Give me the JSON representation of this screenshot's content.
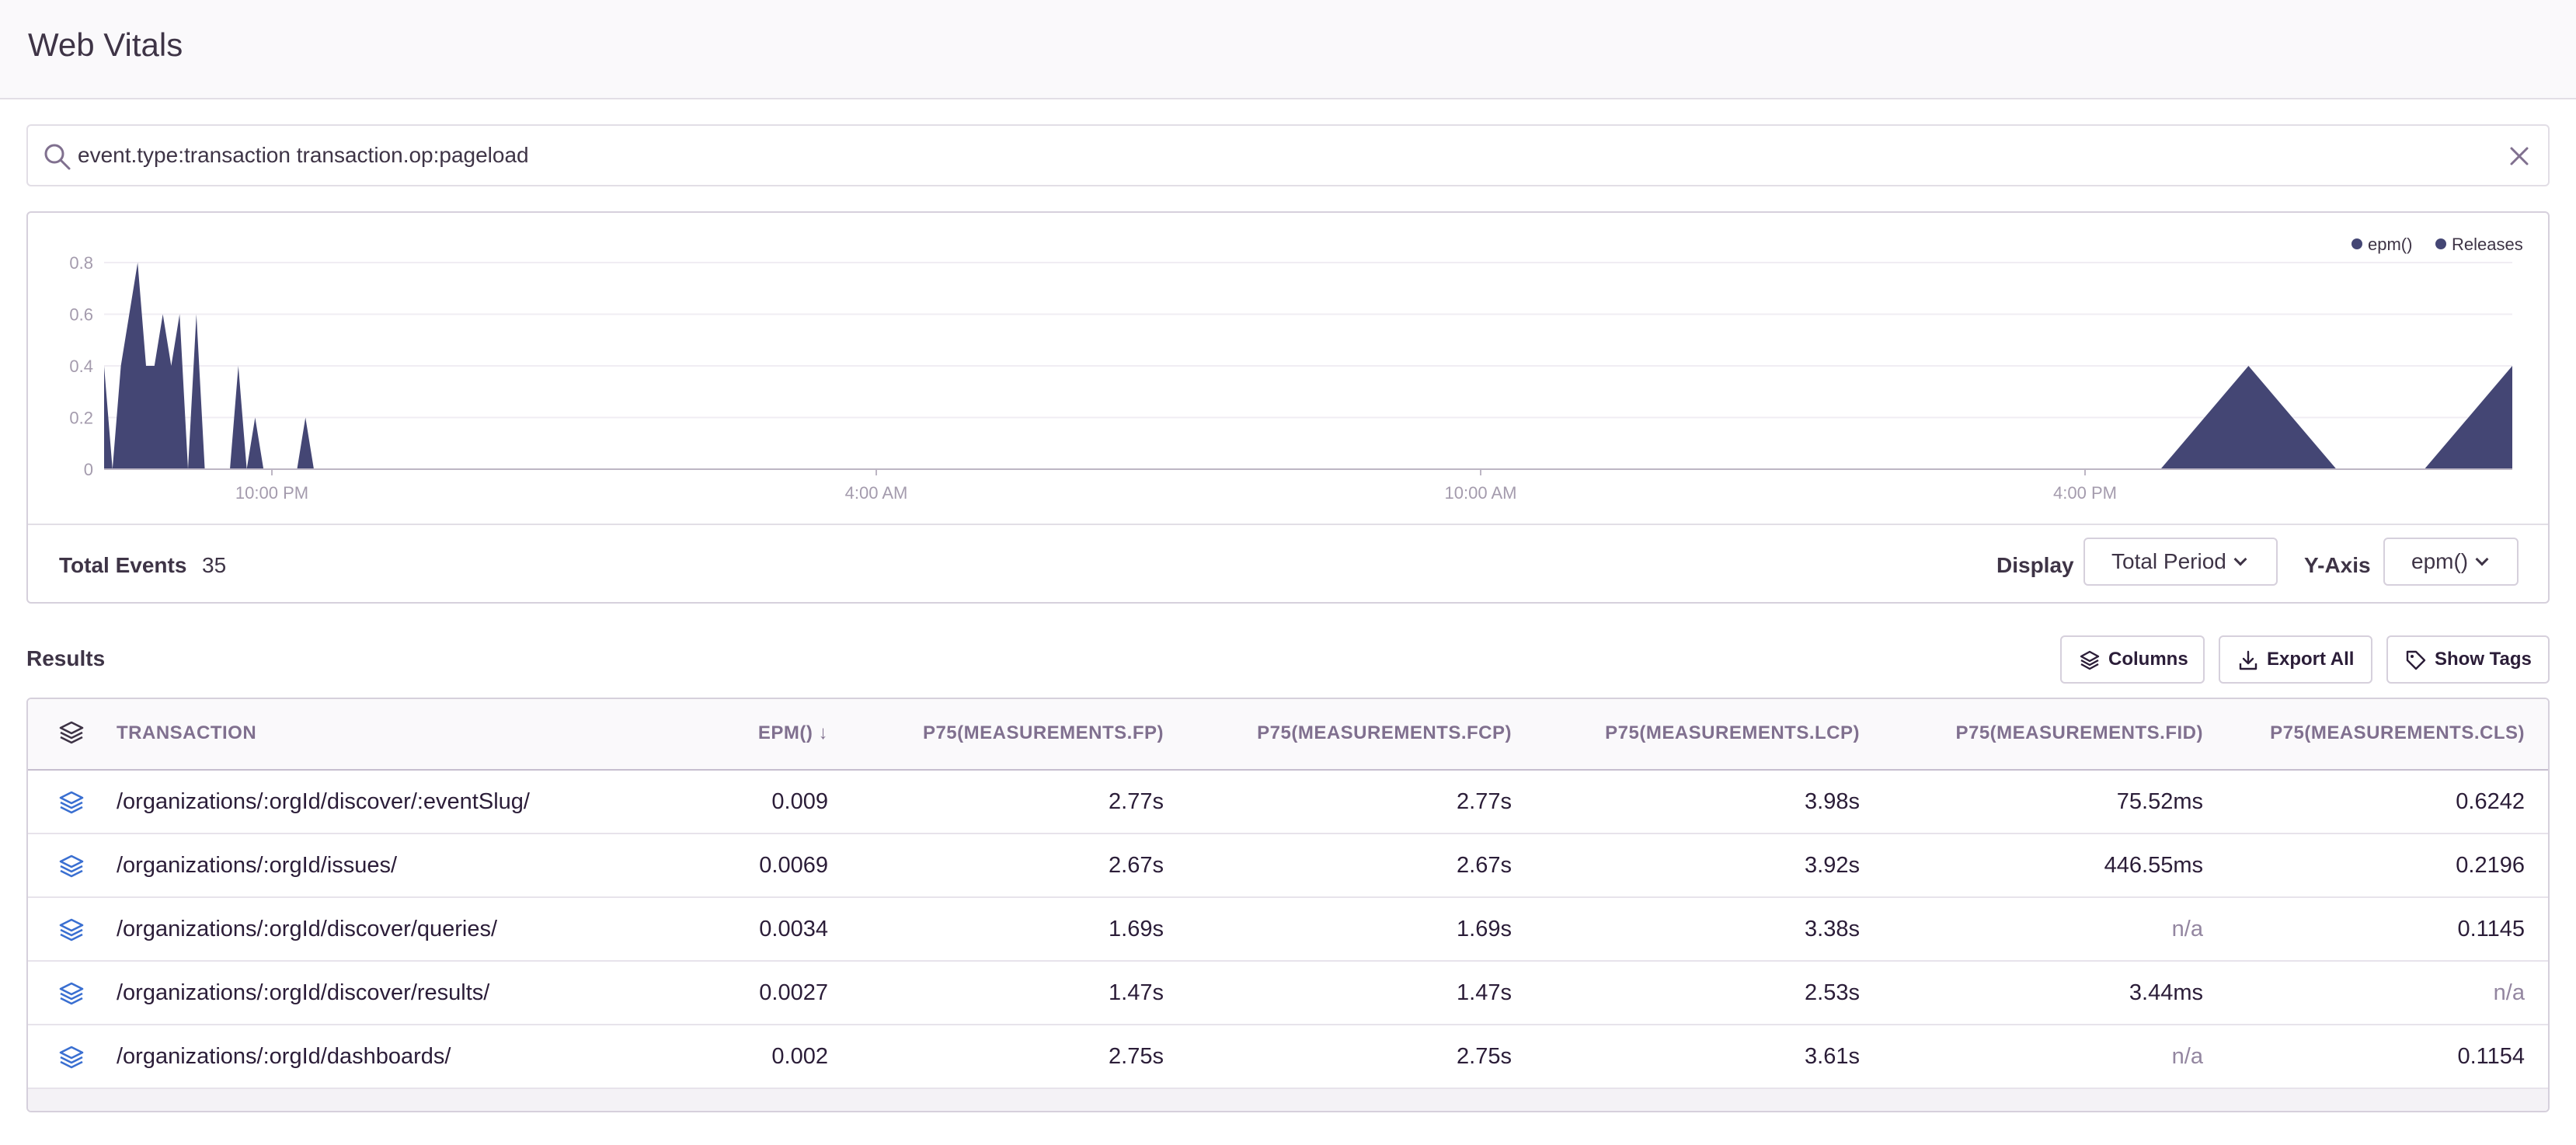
{
  "header": {
    "title": "Web Vitals"
  },
  "search": {
    "query": "event.type:transaction transaction.op:pageload"
  },
  "chart": {
    "legend": [
      "epm()",
      "Releases"
    ],
    "accent_color": "#444674",
    "y_ticks": [
      "0.8",
      "0.6",
      "0.4",
      "0.2",
      "0"
    ],
    "x_ticks": [
      "10:00 PM",
      "4:00 AM",
      "10:00 AM",
      "4:00 PM"
    ]
  },
  "chart_data": {
    "type": "area",
    "series": [
      {
        "name": "epm()",
        "x_index": [
          0,
          1,
          2,
          3,
          4,
          5,
          6,
          7,
          8,
          9,
          10,
          11,
          12,
          13,
          14,
          15,
          16,
          17,
          18,
          19,
          20,
          21,
          22,
          23,
          24,
          25,
          26,
          27,
          28,
          29,
          30,
          31,
          32,
          33,
          34,
          35,
          36,
          37,
          38,
          39,
          40,
          41,
          42,
          43,
          44,
          45,
          46,
          47,
          48,
          49,
          50
        ],
        "values": [
          0.4,
          0,
          0.4,
          0.6,
          0.8,
          0.4,
          0.4,
          0.6,
          0.4,
          0.6,
          0,
          0.6,
          0,
          0,
          0,
          0,
          0.4,
          0,
          0.2,
          0,
          0,
          0,
          0,
          0,
          0.2,
          0,
          0,
          0,
          0,
          0,
          0,
          0,
          0,
          0,
          0,
          0,
          0,
          0,
          0,
          0,
          0,
          0,
          0,
          0,
          0,
          0,
          0,
          0.4,
          0,
          0,
          0.4
        ]
      }
    ],
    "x_ticks": [
      "10:00 PM",
      "4:00 AM",
      "10:00 AM",
      "4:00 PM"
    ],
    "ylim": [
      0,
      0.8
    ],
    "legend_placement": "top-right",
    "grid": true
  },
  "summary": {
    "total_label": "Total Events",
    "total_value": "35",
    "display_label": "Display",
    "display_value": "Total Period",
    "yaxis_label": "Y-Axis",
    "yaxis_value": "epm()"
  },
  "results": {
    "title": "Results",
    "buttons": {
      "columns": "Columns",
      "export": "Export All",
      "tags": "Show Tags"
    },
    "columns": [
      "TRANSACTION",
      "EPM() ↓",
      "P75(MEASUREMENTS.FP)",
      "P75(MEASUREMENTS.FCP)",
      "P75(MEASUREMENTS.LCP)",
      "P75(MEASUREMENTS.FID)",
      "P75(MEASUREMENTS.CLS)"
    ],
    "rows": [
      [
        "/organizations/:orgId/discover/:eventSlug/",
        "0.009",
        "2.77s",
        "2.77s",
        "3.98s",
        "75.52ms",
        "0.6242"
      ],
      [
        "/organizations/:orgId/issues/",
        "0.0069",
        "2.67s",
        "2.67s",
        "3.92s",
        "446.55ms",
        "0.2196"
      ],
      [
        "/organizations/:orgId/discover/queries/",
        "0.0034",
        "1.69s",
        "1.69s",
        "3.38s",
        "n/a",
        "0.1145"
      ],
      [
        "/organizations/:orgId/discover/results/",
        "0.0027",
        "1.47s",
        "1.47s",
        "2.53s",
        "3.44ms",
        "n/a"
      ],
      [
        "/organizations/:orgId/dashboards/",
        "0.002",
        "2.75s",
        "2.75s",
        "3.61s",
        "n/a",
        "0.1154"
      ]
    ]
  }
}
